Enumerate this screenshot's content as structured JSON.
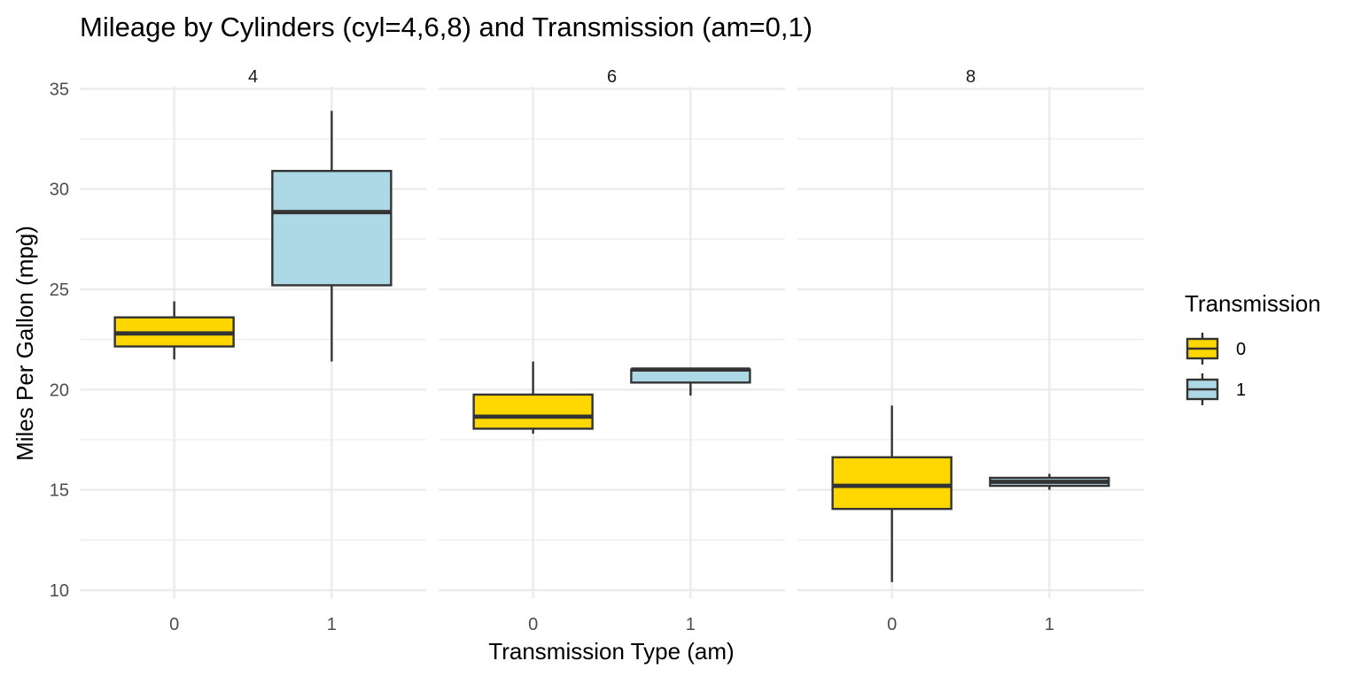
{
  "chart_data": {
    "type": "boxplot",
    "title": "Mileage by Cylinders (cyl=4,6,8) and Transmission (am=0,1)",
    "xlabel": "Transmission Type (am)",
    "ylabel": "Miles Per Gallon (mpg)",
    "ylim": [
      9.6,
      35.1
    ],
    "yticks": [
      10,
      15,
      20,
      25,
      30,
      35
    ],
    "facets": [
      "4",
      "6",
      "8"
    ],
    "categories": [
      "0",
      "1"
    ],
    "legend": {
      "title": "Transmission",
      "position": "right",
      "items": [
        {
          "label": "0",
          "color": "#FFD700"
        },
        {
          "label": "1",
          "color": "#ADD8E6"
        }
      ]
    },
    "grid": true,
    "boxes": [
      {
        "facet": "4",
        "am": "0",
        "min": 21.5,
        "q1": 22.15,
        "median": 22.8,
        "q3": 23.6,
        "max": 24.4
      },
      {
        "facet": "4",
        "am": "1",
        "min": 21.4,
        "q1": 25.2,
        "median": 28.85,
        "q3": 30.9,
        "max": 33.9
      },
      {
        "facet": "6",
        "am": "0",
        "min": 17.8,
        "q1": 18.05,
        "median": 18.65,
        "q3": 19.75,
        "max": 21.4
      },
      {
        "facet": "6",
        "am": "1",
        "min": 19.7,
        "q1": 20.35,
        "median": 21.0,
        "q3": 21.0,
        "max": 21.0
      },
      {
        "facet": "8",
        "am": "0",
        "min": 10.4,
        "q1": 14.05,
        "median": 15.2,
        "q3": 16.625,
        "max": 19.2
      },
      {
        "facet": "8",
        "am": "1",
        "min": 15.0,
        "q1": 15.2,
        "median": 15.4,
        "q3": 15.6,
        "max": 15.8
      }
    ],
    "colors": {
      "am0": "#FFD700",
      "am1": "#ADD8E6",
      "outline": "#333333",
      "grid": "#EBEBEB"
    }
  }
}
